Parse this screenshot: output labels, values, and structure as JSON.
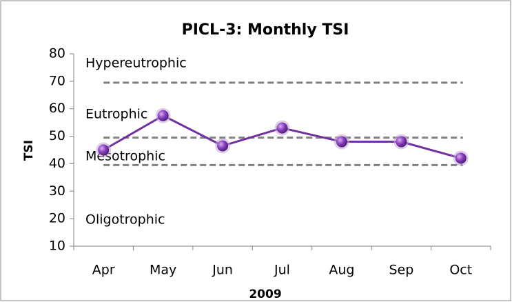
{
  "chart_data": {
    "type": "line",
    "title": "PICL-3: Monthly TSI",
    "x_label": "2009",
    "y_label": "TSI",
    "categories": [
      "Apr",
      "May",
      "Jun",
      "Jul",
      "Aug",
      "Sep",
      "Oct"
    ],
    "series": [
      {
        "name": "TSI",
        "color": "#7030a0",
        "values": [
          45,
          57.5,
          46.5,
          53,
          48,
          48,
          42
        ]
      }
    ],
    "ylim": [
      10,
      80
    ],
    "yticks": [
      10,
      20,
      30,
      40,
      50,
      60,
      70,
      80
    ],
    "grid": false,
    "legend": false,
    "reference_lines": [
      {
        "value": 69.5,
        "color": "#808080"
      },
      {
        "value": 49.5,
        "color": "#808080"
      },
      {
        "value": 39.5,
        "color": "#808080"
      }
    ],
    "zone_labels": [
      "Hypereutrophic",
      "Eutrophic",
      "Mesotrophic",
      "Oligotrophic"
    ]
  }
}
